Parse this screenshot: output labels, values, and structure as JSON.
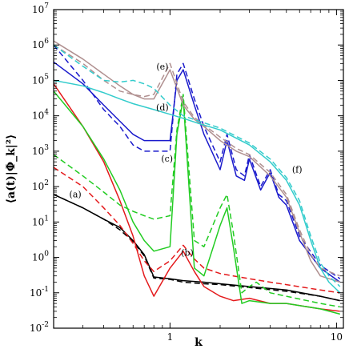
{
  "chart_data": {
    "type": "line",
    "xlabel": "k",
    "ylabel": "⟨a(t)|Φ_k|²⟩",
    "xscale": "log",
    "yscale": "log",
    "xlim": [
      0.2,
      11
    ],
    "ylim": [
      0.01,
      10000000
    ],
    "x_ticks": [
      {
        "value": 1,
        "label": "1"
      },
      {
        "value": 10,
        "label": "10"
      }
    ],
    "y_ticks": [
      {
        "exp": -2,
        "label": "10",
        "sup": "-2"
      },
      {
        "exp": -1,
        "label": "10",
        "sup": "-1"
      },
      {
        "exp": 0,
        "label": "10",
        "sup": "0"
      },
      {
        "exp": 1,
        "label": "10",
        "sup": "1"
      },
      {
        "exp": 2,
        "label": "10",
        "sup": "2"
      },
      {
        "exp": 3,
        "label": "10",
        "sup": "3"
      },
      {
        "exp": 4,
        "label": "10",
        "sup": "4"
      },
      {
        "exp": 5,
        "label": "10",
        "sup": "5"
      },
      {
        "exp": 6,
        "label": "10",
        "sup": "6"
      },
      {
        "exp": 7,
        "label": "10",
        "sup": "7"
      }
    ],
    "curve_labels": [
      {
        "text": "(a)",
        "x": 0.27,
        "y": 50
      },
      {
        "text": "(b)",
        "x": 1.27,
        "y": 1.1
      },
      {
        "text": "(c)",
        "x": 0.96,
        "y": 500
      },
      {
        "text": "(d)",
        "x": 0.9,
        "y": 14000
      },
      {
        "text": "(e)",
        "x": 0.9,
        "y": 200000
      },
      {
        "text": "(f)",
        "x": 5.8,
        "y": 250
      }
    ],
    "colors": {
      "a": "#000000",
      "b": "#e41a1c",
      "c": "#22cc22",
      "d": "#1a1acc",
      "e": "#b09090",
      "f": "#33cccc"
    },
    "series": [
      {
        "curve": "a",
        "style": "solid",
        "color": "#000000",
        "x": [
          0.2,
          0.3,
          0.4,
          0.5,
          0.6,
          0.7,
          0.8,
          1.0,
          1.2,
          1.6,
          2.0,
          3.0,
          5.0,
          8.0,
          10.5
        ],
        "y": [
          60,
          25,
          12,
          7,
          3,
          1.2,
          0.28,
          0.25,
          0.22,
          0.2,
          0.18,
          0.15,
          0.12,
          0.08,
          0.06
        ]
      },
      {
        "curve": "a",
        "style": "dashed",
        "color": "#000000",
        "x": [
          0.2,
          0.3,
          0.4,
          0.5,
          0.6,
          0.7,
          0.8,
          1.0,
          1.2,
          1.6,
          2.0,
          3.0,
          5.0,
          8.0,
          10.5
        ],
        "y": [
          60,
          25,
          12,
          6,
          2.8,
          1.1,
          0.26,
          0.24,
          0.2,
          0.18,
          0.17,
          0.14,
          0.11,
          0.08,
          0.06
        ]
      },
      {
        "curve": "b",
        "style": "solid",
        "color": "#e41a1c",
        "x": [
          0.2,
          0.3,
          0.4,
          0.5,
          0.6,
          0.7,
          0.8,
          1.0,
          1.2,
          1.4,
          1.6,
          2.0,
          2.4,
          3.0,
          4.0,
          5.0,
          8.0,
          10.5
        ],
        "y": [
          80000,
          5000,
          500,
          40,
          4,
          0.3,
          0.08,
          0.5,
          1.5,
          0.4,
          0.15,
          0.08,
          0.06,
          0.07,
          0.05,
          0.05,
          0.035,
          0.03
        ]
      },
      {
        "curve": "b",
        "style": "dashed",
        "color": "#e41a1c",
        "x": [
          0.2,
          0.3,
          0.4,
          0.5,
          0.6,
          0.7,
          0.8,
          1.0,
          1.2,
          1.4,
          1.6,
          2.0,
          2.4,
          3.0,
          4.0,
          5.0,
          8.0,
          10.5
        ],
        "y": [
          350,
          100,
          25,
          8,
          2.5,
          0.8,
          0.4,
          0.8,
          2.2,
          0.9,
          0.5,
          0.35,
          0.3,
          0.25,
          0.2,
          0.17,
          0.12,
          0.1
        ]
      },
      {
        "curve": "c",
        "style": "solid",
        "color": "#22cc22",
        "x": [
          0.2,
          0.3,
          0.4,
          0.5,
          0.6,
          0.7,
          0.8,
          1.0,
          1.1,
          1.2,
          1.4,
          1.6,
          2.0,
          2.2,
          2.4,
          2.7,
          3.0,
          4.0,
          5.0,
          8.0,
          10.5
        ],
        "y": [
          50000,
          5000,
          600,
          80,
          10,
          3,
          1.5,
          2,
          3000,
          30000,
          0.5,
          0.3,
          8,
          25,
          2,
          0.05,
          0.06,
          0.05,
          0.05,
          0.035,
          0.025
        ]
      },
      {
        "curve": "c",
        "style": "dashed",
        "color": "#22cc22",
        "x": [
          0.2,
          0.3,
          0.4,
          0.5,
          0.6,
          0.7,
          0.8,
          1.0,
          1.1,
          1.2,
          1.4,
          1.6,
          2.0,
          2.2,
          2.4,
          2.7,
          3.0,
          3.3,
          4.0,
          5.0,
          8.0,
          10.5
        ],
        "y": [
          800,
          200,
          70,
          30,
          20,
          15,
          12,
          15,
          4000,
          40000,
          3,
          2,
          25,
          60,
          5,
          0.1,
          0.15,
          0.2,
          0.1,
          0.08,
          0.05,
          0.04
        ]
      },
      {
        "curve": "d",
        "style": "solid",
        "color": "#1a1acc",
        "x": [
          0.2,
          0.3,
          0.4,
          0.5,
          0.6,
          0.7,
          0.8,
          1.0,
          1.1,
          1.2,
          1.4,
          1.6,
          2.0,
          2.2,
          2.5,
          2.8,
          3.0,
          3.5,
          4.0,
          4.5,
          5.0,
          6.0,
          8.0,
          10.5
        ],
        "y": [
          330000,
          80000,
          20000,
          7000,
          3000,
          2000,
          2000,
          2000,
          100000,
          200000,
          20000,
          3000,
          300,
          2000,
          200,
          150,
          600,
          80,
          250,
          50,
          30,
          3,
          0.5,
          0.2
        ]
      },
      {
        "curve": "d",
        "style": "dashed",
        "color": "#1a1acc",
        "x": [
          0.2,
          0.3,
          0.4,
          0.5,
          0.6,
          0.7,
          0.8,
          1.0,
          1.1,
          1.2,
          1.4,
          1.6,
          2.0,
          2.2,
          2.5,
          2.8,
          3.0,
          3.5,
          4.0,
          4.5,
          5.0,
          6.0,
          8.0,
          10.5
        ],
        "y": [
          1000000,
          100000,
          15000,
          5000,
          1500,
          1000,
          1000,
          1000,
          150000,
          300000,
          30000,
          5000,
          500,
          3000,
          300,
          200,
          800,
          100,
          300,
          60,
          40,
          4,
          0.6,
          0.25
        ]
      },
      {
        "curve": "e",
        "style": "solid",
        "color": "#b09090",
        "x": [
          0.2,
          0.3,
          0.4,
          0.5,
          0.6,
          0.7,
          0.8,
          1.0,
          1.2,
          1.4,
          1.6,
          2.0,
          2.5,
          3.0,
          4.0,
          5.0,
          6.0,
          7.0,
          8.0,
          10.5
        ],
        "y": [
          1300000,
          400000,
          150000,
          70000,
          40000,
          30000,
          30000,
          200000,
          20000,
          8000,
          5000,
          2000,
          1000,
          700,
          200,
          50,
          5,
          0.8,
          0.3,
          0.2
        ]
      },
      {
        "curve": "e",
        "style": "dashed",
        "color": "#b09090",
        "x": [
          0.2,
          0.3,
          0.4,
          0.5,
          0.6,
          0.7,
          0.8,
          1.0,
          1.2,
          1.4,
          1.6,
          2.0,
          2.5,
          3.0,
          4.0,
          5.0,
          6.0,
          7.0,
          8.0,
          10.5
        ],
        "y": [
          1000000,
          300000,
          100000,
          50000,
          40000,
          35000,
          40000,
          300000,
          25000,
          9000,
          5500,
          2500,
          1200,
          800,
          250,
          60,
          6,
          1.2,
          0.5,
          0.3
        ]
      },
      {
        "curve": "f",
        "style": "solid",
        "color": "#33cccc",
        "x": [
          0.2,
          0.3,
          0.4,
          0.5,
          0.6,
          0.8,
          1.0,
          1.2,
          1.5,
          2.0,
          3.0,
          4.0,
          5.0,
          6.0,
          7.0,
          8.0,
          9.0,
          10.5
        ],
        "y": [
          100000,
          70000,
          45000,
          30000,
          22000,
          15000,
          11000,
          8500,
          6000,
          4000,
          1500,
          500,
          150,
          30,
          3,
          0.5,
          0.2,
          0.1
        ]
      },
      {
        "curve": "f",
        "style": "dashed",
        "color": "#33cccc",
        "x": [
          0.2,
          0.3,
          0.4,
          0.5,
          0.6,
          0.7,
          0.8,
          1.0,
          1.2,
          1.5,
          2.0,
          3.0,
          4.0,
          5.0,
          6.0,
          7.0,
          8.0,
          9.0,
          10.5
        ],
        "y": [
          1000000,
          250000,
          100000,
          90000,
          100000,
          80000,
          60000,
          20000,
          10000,
          7000,
          4500,
          1700,
          600,
          180,
          40,
          4,
          0.7,
          0.3,
          0.15
        ]
      }
    ]
  }
}
